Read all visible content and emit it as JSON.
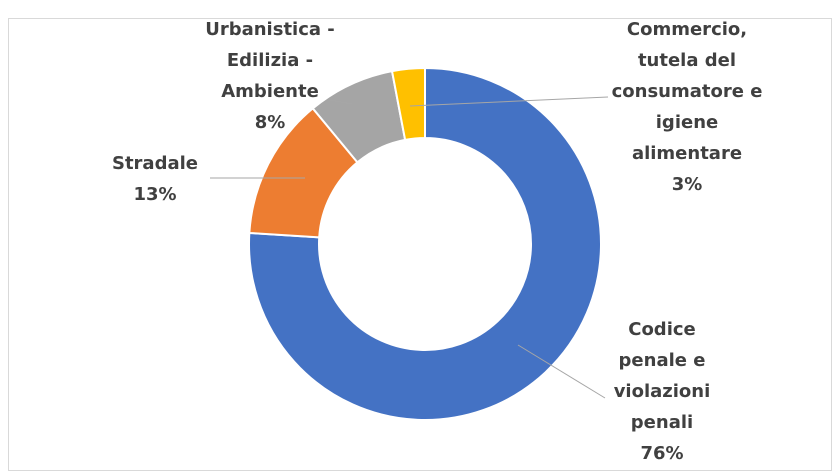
{
  "chart_data": {
    "type": "donut",
    "categories": [
      "Codice penale e violazioni penali",
      "Stradale",
      "Urbanistica - Edilizia - Ambiente",
      "Commercio, tutela del consumatore e igiene alimentare"
    ],
    "values": [
      76,
      13,
      8,
      3
    ],
    "value_labels": [
      "76%",
      "13%",
      "8%",
      "3%"
    ],
    "colors": [
      "#4472c4",
      "#ed7d31",
      "#a5a5a5",
      "#ffc000"
    ]
  }
}
